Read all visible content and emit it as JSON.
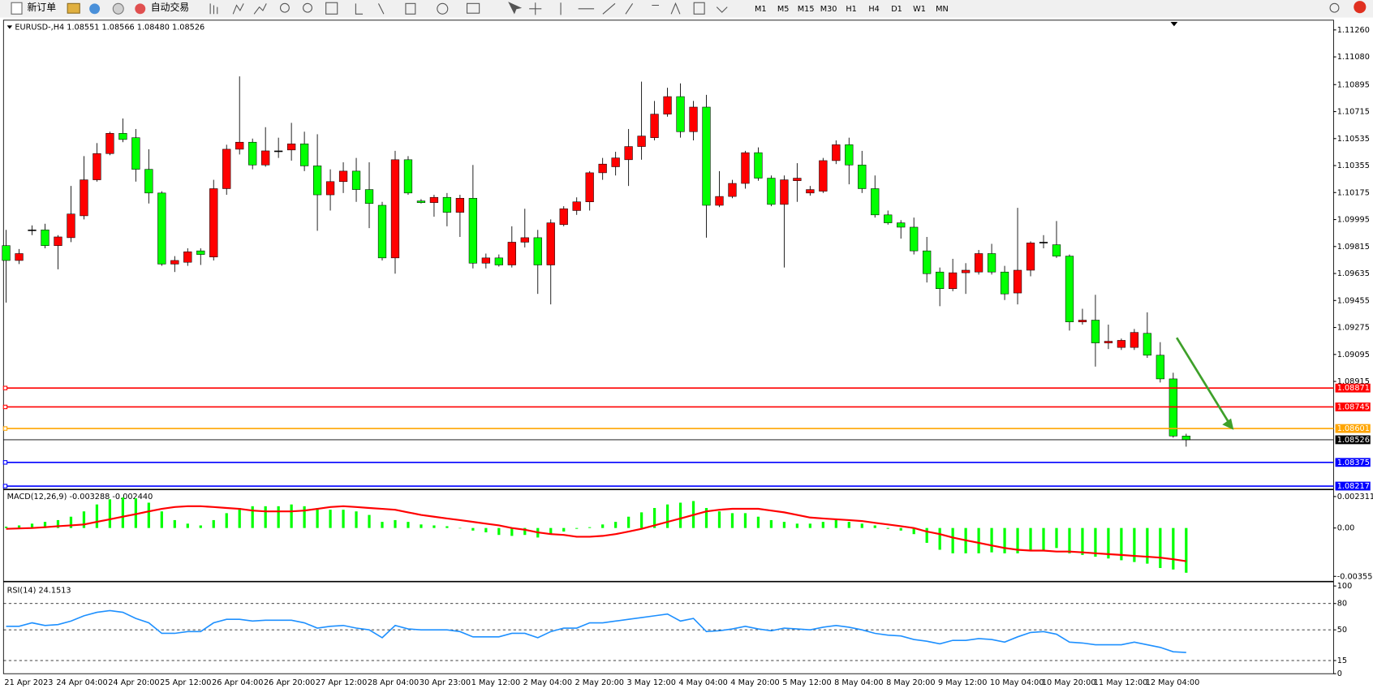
{
  "toolbar": {
    "new_order": "新订单",
    "auto_trading": "自动交易",
    "timeframes": [
      "M1",
      "M5",
      "M15",
      "M30",
      "H1",
      "H4",
      "D1",
      "W1",
      "MN"
    ]
  },
  "chart_data": [
    {
      "type": "candlestick",
      "title": "EURUSD-,H4  1.08551 1.08566 1.08480 1.08526",
      "categories": [
        "21 Apr 2023",
        null,
        null,
        null,
        "24 Apr 04:00",
        null,
        null,
        null,
        "24 Apr 20:00",
        null,
        null,
        null,
        "25 Apr 12:00",
        null,
        null,
        null,
        "26 Apr 04:00",
        null,
        null,
        null,
        "26 Apr 20:00",
        null,
        null,
        null,
        "27 Apr 12:00",
        null,
        null,
        null,
        "28 Apr 04:00",
        null,
        null,
        null,
        "30 Apr 23:00",
        null,
        null,
        null,
        "1 May 12:00",
        null,
        null,
        null,
        "2 May 04:00",
        null,
        null,
        null,
        "2 May 20:00",
        null,
        null,
        null,
        "3 May 12:00",
        null,
        null,
        null,
        "4 May 04:00",
        null,
        null,
        null,
        "4 May 20:00",
        null,
        null,
        null,
        "5 May 12:00",
        null,
        null,
        null,
        "8 May 04:00",
        null,
        null,
        null,
        "8 May 20:00",
        null,
        null,
        null,
        "9 May 12:00",
        null,
        null,
        null,
        "10 May 04:00",
        null,
        null,
        null,
        "10 May 20:00",
        null,
        null,
        null,
        "11 May 12:00",
        null,
        null,
        null,
        "12 May 04:00",
        null,
        null,
        null
      ],
      "open": [
        1.09821,
        1.09722,
        1.09926,
        1.09926,
        1.09821,
        1.09874,
        1.1002,
        1.1026,
        1.10435,
        1.1057,
        1.10541,
        1.1033,
        1.10172,
        1.09698,
        1.0971,
        1.09786,
        1.09745,
        1.10201,
        1.10464,
        1.10511,
        1.10359,
        1.10453,
        1.10459,
        1.105,
        1.10353,
        1.1016,
        1.10248,
        1.10318,
        1.10195,
        1.1009,
        1.09739,
        1.10394,
        1.10119,
        1.10108,
        1.10143,
        1.10043,
        1.10137,
        1.09704,
        1.09739,
        1.09692,
        1.09844,
        1.09874,
        1.09692,
        1.09961,
        1.10055,
        1.10113,
        1.10307,
        1.10347,
        1.10394,
        1.10482,
        1.10541,
        1.10698,
        1.10815,
        1.10581,
        1.10745,
        1.1009,
        1.10149,
        1.10236,
        1.10441,
        1.10271,
        1.10096,
        1.10254,
        1.10172,
        1.10184,
        1.10388,
        1.10494,
        1.10359,
        1.10201,
        1.10026,
        1.09973,
        1.09944,
        1.09786,
        1.09645,
        1.09534,
        1.0964,
        1.09645,
        1.09768,
        1.09645,
        1.09505,
        1.09657,
        1.09844,
        1.09827,
        1.09751,
        1.09312,
        1.09324,
        1.09172,
        1.09142,
        1.09142,
        1.09236,
        1.0909,
        1.08932,
        1.08551
      ],
      "high": [
        1.09926,
        1.09798,
        1.09956,
        1.09967,
        1.09891,
        1.10219,
        1.10418,
        1.10505,
        1.10581,
        1.10669,
        1.10599,
        1.10464,
        1.10184,
        1.09751,
        1.09803,
        1.09803,
        1.1026,
        1.10494,
        1.1095,
        1.10535,
        1.10611,
        1.10541,
        1.1064,
        1.10581,
        1.10564,
        1.1033,
        1.10377,
        1.10406,
        1.10377,
        1.10113,
        1.10453,
        1.10418,
        1.10131,
        1.1016,
        1.10172,
        1.1016,
        1.10359,
        1.09768,
        1.09762,
        1.0995,
        1.10067,
        1.09926,
        1.09996,
        1.10084,
        1.10143,
        1.10318,
        1.10406,
        1.10447,
        1.10599,
        1.10915,
        1.10786,
        1.10874,
        1.10903,
        1.10786,
        1.10827,
        1.10318,
        1.1026,
        1.10453,
        1.10476,
        1.10289,
        1.10289,
        1.10371,
        1.10219,
        1.10406,
        1.10523,
        1.10541,
        1.10453,
        1.10289,
        1.10055,
        1.09991,
        1.10008,
        1.09879,
        1.09675,
        1.09733,
        1.09704,
        1.09792,
        1.09833,
        1.09686,
        1.10073,
        1.0985,
        1.09891,
        1.09985,
        1.09762,
        1.094,
        1.09493,
        1.09294,
        1.09201,
        1.09265,
        1.09376,
        1.09177,
        1.08973,
        1.08566
      ],
      "low": [
        1.09441,
        1.09698,
        1.09891,
        1.09803,
        1.09663,
        1.09844,
        1.09996,
        1.10248,
        1.10424,
        1.10511,
        1.10248,
        1.10102,
        1.09686,
        1.09645,
        1.09686,
        1.09692,
        1.09722,
        1.1016,
        1.10429,
        1.1033,
        1.10347,
        1.10406,
        1.10388,
        1.10318,
        1.0992,
        1.10055,
        1.10172,
        1.10113,
        1.09938,
        1.09722,
        1.09634,
        1.1016,
        1.10102,
        1.10014,
        1.0995,
        1.09879,
        1.09669,
        1.09669,
        1.09681,
        1.09675,
        1.09809,
        1.09499,
        1.09429,
        1.0995,
        1.10026,
        1.10055,
        1.1026,
        1.10289,
        1.10219,
        1.10394,
        1.10523,
        1.10681,
        1.10541,
        1.10523,
        1.09874,
        1.10078,
        1.10137,
        1.10201,
        1.10254,
        1.10084,
        1.09675,
        1.10113,
        1.10154,
        1.10172,
        1.10365,
        1.1023,
        1.10172,
        1.10008,
        1.09961,
        1.09868,
        1.09762,
        1.09575,
        1.09417,
        1.09517,
        1.09499,
        1.09628,
        1.09628,
        1.09458,
        1.09429,
        1.09616,
        1.09803,
        1.09739,
        1.09254,
        1.09294,
        1.09014,
        1.09131,
        1.09125,
        1.09125,
        1.09072,
        1.08908,
        1.0854,
        1.0848
      ],
      "close": [
        1.09722,
        1.09768,
        1.09926,
        1.09821,
        1.09879,
        1.10032,
        1.1026,
        1.10435,
        1.1057,
        1.10529,
        1.1033,
        1.10172,
        1.09698,
        1.09722,
        1.0978,
        1.09762,
        1.10201,
        1.10464,
        1.10511,
        1.10359,
        1.10453,
        1.10453,
        1.105,
        1.10353,
        1.1016,
        1.10248,
        1.10318,
        1.10195,
        1.10102,
        1.09739,
        1.10394,
        1.10172,
        1.10108,
        1.10143,
        1.10043,
        1.10137,
        1.09704,
        1.09739,
        1.09692,
        1.09844,
        1.09874,
        1.09692,
        1.09973,
        1.10067,
        1.10113,
        1.10307,
        1.10365,
        1.10406,
        1.10482,
        1.10552,
        1.10698,
        1.10815,
        1.10581,
        1.10745,
        1.1009,
        1.10149,
        1.10236,
        1.10441,
        1.10271,
        1.10096,
        1.1026,
        1.10271,
        1.10195,
        1.10388,
        1.10494,
        1.10359,
        1.10201,
        1.10026,
        1.09973,
        1.09944,
        1.09786,
        1.09634,
        1.09534,
        1.0964,
        1.09657,
        1.09768,
        1.09645,
        1.09499,
        1.09657,
        1.09839,
        1.09844,
        1.09751,
        1.09312,
        1.09324,
        1.09172,
        1.09183,
        1.09189,
        1.09242,
        1.0909,
        1.08932,
        1.08551,
        1.08526
      ],
      "up_color": "#ff0000",
      "down_color": "#00ff00",
      "ylim": [
        1.08206,
        1.11319
      ],
      "yticks": [
        {
          "value": 1.1126,
          "label": "1.11260"
        },
        {
          "value": 1.1108,
          "label": "1.11080"
        },
        1.10895,
        1.10715,
        1.10535,
        1.10355,
        1.10175,
        1.09995,
        1.09815,
        1.09635,
        1.09455,
        1.09275,
        1.09095,
        1.08915
      ],
      "levels": [
        {
          "value": 1.08871,
          "color": "#ff0000"
        },
        {
          "value": 1.08745,
          "color": "#ff0000"
        },
        {
          "value": 1.08601,
          "color": "#ffa500"
        },
        {
          "value": 1.08375,
          "color": "#0000ff"
        },
        {
          "value": 1.08217,
          "color": "#0000ff"
        }
      ]
    },
    {
      "type": "macd",
      "title": "MACD(12,26,9) -0.003288 -0.002440",
      "histogram": [
        0.0001,
        0.00019,
        0.00032,
        0.00045,
        0.00058,
        0.00083,
        0.00122,
        0.00173,
        0.00211,
        0.00224,
        0.00218,
        0.00186,
        0.00122,
        0.00058,
        0.00032,
        0.00019,
        0.00058,
        0.00109,
        0.00147,
        0.0016,
        0.0016,
        0.0016,
        0.00173,
        0.0016,
        0.00147,
        0.00134,
        0.00134,
        0.00122,
        0.00096,
        0.00045,
        0.00058,
        0.00045,
        0.00026,
        0.00019,
        0.00013,
        0,
        -0.00019,
        -0.00032,
        -0.00051,
        -0.00058,
        -0.00051,
        -0.0007,
        -0.00045,
        -0.00026,
        -6e-05,
        6e-05,
        0.00026,
        0.00045,
        0.00083,
        0.00115,
        0.00147,
        0.00173,
        0.00186,
        0.00198,
        0.00147,
        0.00122,
        0.00109,
        0.00109,
        0.00083,
        0.00058,
        0.00045,
        0.00032,
        0.00032,
        0.00045,
        0.00058,
        0.00045,
        0.00032,
        0.00019,
        -6e-05,
        -0.00019,
        -0.00045,
        -0.00109,
        -0.0016,
        -0.00186,
        -0.00186,
        -0.00186,
        -0.00179,
        -0.00186,
        -0.00186,
        -0.0016,
        -0.0016,
        -0.00147,
        -0.00186,
        -0.00198,
        -0.00211,
        -0.00224,
        -0.00237,
        -0.0025,
        -0.00262,
        -0.00294,
        -0.00305,
        -0.003288
      ],
      "signal": [
        -6e-05,
        -3e-05,
        0,
        6e-05,
        0.00013,
        0.00019,
        0.00026,
        0.00045,
        0.00064,
        0.00083,
        0.00102,
        0.00122,
        0.00141,
        0.00154,
        0.0016,
        0.0016,
        0.00154,
        0.00147,
        0.00141,
        0.00128,
        0.00122,
        0.00122,
        0.00122,
        0.00128,
        0.00141,
        0.00154,
        0.0016,
        0.00154,
        0.00147,
        0.00141,
        0.00134,
        0.00115,
        0.00096,
        0.00083,
        0.0007,
        0.00058,
        0.00045,
        0.00032,
        0.00019,
        0,
        -0.00013,
        -0.00032,
        -0.00045,
        -0.00051,
        -0.00064,
        -0.00064,
        -0.00058,
        -0.00045,
        -0.00026,
        -6e-05,
        0.00019,
        0.00045,
        0.0007,
        0.00096,
        0.00122,
        0.00134,
        0.00141,
        0.00141,
        0.00141,
        0.00128,
        0.00115,
        0.00096,
        0.00077,
        0.0007,
        0.00064,
        0.00058,
        0.00051,
        0.00038,
        0.00026,
        0.00013,
        0,
        -0.00026,
        -0.00045,
        -0.0007,
        -0.0009,
        -0.00109,
        -0.00128,
        -0.00147,
        -0.0016,
        -0.00166,
        -0.00166,
        -0.00173,
        -0.00173,
        -0.00179,
        -0.00186,
        -0.00192,
        -0.00198,
        -0.00205,
        -0.00211,
        -0.00218,
        -0.0023,
        -0.00244
      ],
      "histogram_color": "#00ff00",
      "signal_color": "#ff0000",
      "ylim": [
        -0.003874,
        0.002701
      ],
      "yticks": [
        0.002311,
        {
          "value": 0,
          "label": "0.00"
        },
        -0.003555
      ]
    },
    {
      "type": "line",
      "title": "RSI(14) 24.1513",
      "values": [
        54,
        54,
        58,
        55,
        56,
        60,
        66,
        70,
        72,
        70,
        63,
        58,
        46,
        46,
        48,
        48,
        58,
        62,
        62,
        60,
        61,
        61,
        61,
        58,
        52,
        54,
        55,
        52,
        50,
        41,
        55,
        51,
        50,
        50,
        50,
        48,
        42,
        42,
        42,
        46,
        46,
        41,
        48,
        52,
        52,
        58,
        58,
        60,
        62,
        64,
        66,
        68,
        60,
        63,
        48,
        49,
        51,
        54,
        51,
        49,
        52,
        51,
        50,
        53,
        55,
        53,
        50,
        46,
        44,
        43,
        39,
        37,
        34,
        38,
        38,
        40,
        39,
        36,
        42,
        47,
        48,
        45,
        36,
        35,
        33,
        33,
        33,
        36,
        33,
        30,
        25,
        24.1513
      ],
      "color": "#1e90ff",
      "ylim": [
        0,
        103
      ],
      "yticks": [
        100,
        80,
        50,
        15,
        0
      ],
      "levels": [
        80,
        50,
        15
      ]
    }
  ]
}
